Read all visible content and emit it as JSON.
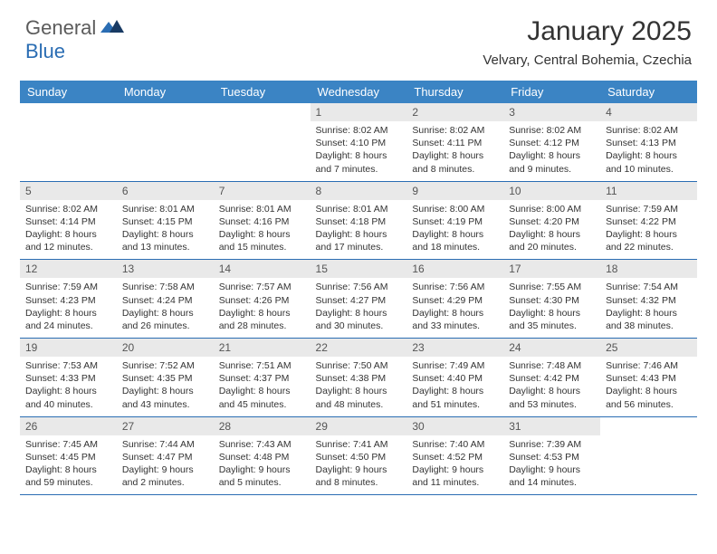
{
  "brand": {
    "part1": "General",
    "part2": "Blue"
  },
  "title": "January 2025",
  "subtitle": "Velvary, Central Bohemia, Czechia",
  "colors": {
    "header_bg": "#3b84c4",
    "header_text": "#ffffff",
    "daynum_bg": "#e9e9e9",
    "row_border": "#2a6db3",
    "brand_gray": "#5b5b5b",
    "brand_blue": "#2a6db3"
  },
  "day_labels": [
    "Sunday",
    "Monday",
    "Tuesday",
    "Wednesday",
    "Thursday",
    "Friday",
    "Saturday"
  ],
  "weeks": [
    [
      {
        "n": "",
        "sr": "",
        "ss": "",
        "dl": ""
      },
      {
        "n": "",
        "sr": "",
        "ss": "",
        "dl": ""
      },
      {
        "n": "",
        "sr": "",
        "ss": "",
        "dl": ""
      },
      {
        "n": "1",
        "sr": "Sunrise: 8:02 AM",
        "ss": "Sunset: 4:10 PM",
        "dl": "Daylight: 8 hours and 7 minutes."
      },
      {
        "n": "2",
        "sr": "Sunrise: 8:02 AM",
        "ss": "Sunset: 4:11 PM",
        "dl": "Daylight: 8 hours and 8 minutes."
      },
      {
        "n": "3",
        "sr": "Sunrise: 8:02 AM",
        "ss": "Sunset: 4:12 PM",
        "dl": "Daylight: 8 hours and 9 minutes."
      },
      {
        "n": "4",
        "sr": "Sunrise: 8:02 AM",
        "ss": "Sunset: 4:13 PM",
        "dl": "Daylight: 8 hours and 10 minutes."
      }
    ],
    [
      {
        "n": "5",
        "sr": "Sunrise: 8:02 AM",
        "ss": "Sunset: 4:14 PM",
        "dl": "Daylight: 8 hours and 12 minutes."
      },
      {
        "n": "6",
        "sr": "Sunrise: 8:01 AM",
        "ss": "Sunset: 4:15 PM",
        "dl": "Daylight: 8 hours and 13 minutes."
      },
      {
        "n": "7",
        "sr": "Sunrise: 8:01 AM",
        "ss": "Sunset: 4:16 PM",
        "dl": "Daylight: 8 hours and 15 minutes."
      },
      {
        "n": "8",
        "sr": "Sunrise: 8:01 AM",
        "ss": "Sunset: 4:18 PM",
        "dl": "Daylight: 8 hours and 17 minutes."
      },
      {
        "n": "9",
        "sr": "Sunrise: 8:00 AM",
        "ss": "Sunset: 4:19 PM",
        "dl": "Daylight: 8 hours and 18 minutes."
      },
      {
        "n": "10",
        "sr": "Sunrise: 8:00 AM",
        "ss": "Sunset: 4:20 PM",
        "dl": "Daylight: 8 hours and 20 minutes."
      },
      {
        "n": "11",
        "sr": "Sunrise: 7:59 AM",
        "ss": "Sunset: 4:22 PM",
        "dl": "Daylight: 8 hours and 22 minutes."
      }
    ],
    [
      {
        "n": "12",
        "sr": "Sunrise: 7:59 AM",
        "ss": "Sunset: 4:23 PM",
        "dl": "Daylight: 8 hours and 24 minutes."
      },
      {
        "n": "13",
        "sr": "Sunrise: 7:58 AM",
        "ss": "Sunset: 4:24 PM",
        "dl": "Daylight: 8 hours and 26 minutes."
      },
      {
        "n": "14",
        "sr": "Sunrise: 7:57 AM",
        "ss": "Sunset: 4:26 PM",
        "dl": "Daylight: 8 hours and 28 minutes."
      },
      {
        "n": "15",
        "sr": "Sunrise: 7:56 AM",
        "ss": "Sunset: 4:27 PM",
        "dl": "Daylight: 8 hours and 30 minutes."
      },
      {
        "n": "16",
        "sr": "Sunrise: 7:56 AM",
        "ss": "Sunset: 4:29 PM",
        "dl": "Daylight: 8 hours and 33 minutes."
      },
      {
        "n": "17",
        "sr": "Sunrise: 7:55 AM",
        "ss": "Sunset: 4:30 PM",
        "dl": "Daylight: 8 hours and 35 minutes."
      },
      {
        "n": "18",
        "sr": "Sunrise: 7:54 AM",
        "ss": "Sunset: 4:32 PM",
        "dl": "Daylight: 8 hours and 38 minutes."
      }
    ],
    [
      {
        "n": "19",
        "sr": "Sunrise: 7:53 AM",
        "ss": "Sunset: 4:33 PM",
        "dl": "Daylight: 8 hours and 40 minutes."
      },
      {
        "n": "20",
        "sr": "Sunrise: 7:52 AM",
        "ss": "Sunset: 4:35 PM",
        "dl": "Daylight: 8 hours and 43 minutes."
      },
      {
        "n": "21",
        "sr": "Sunrise: 7:51 AM",
        "ss": "Sunset: 4:37 PM",
        "dl": "Daylight: 8 hours and 45 minutes."
      },
      {
        "n": "22",
        "sr": "Sunrise: 7:50 AM",
        "ss": "Sunset: 4:38 PM",
        "dl": "Daylight: 8 hours and 48 minutes."
      },
      {
        "n": "23",
        "sr": "Sunrise: 7:49 AM",
        "ss": "Sunset: 4:40 PM",
        "dl": "Daylight: 8 hours and 51 minutes."
      },
      {
        "n": "24",
        "sr": "Sunrise: 7:48 AM",
        "ss": "Sunset: 4:42 PM",
        "dl": "Daylight: 8 hours and 53 minutes."
      },
      {
        "n": "25",
        "sr": "Sunrise: 7:46 AM",
        "ss": "Sunset: 4:43 PM",
        "dl": "Daylight: 8 hours and 56 minutes."
      }
    ],
    [
      {
        "n": "26",
        "sr": "Sunrise: 7:45 AM",
        "ss": "Sunset: 4:45 PM",
        "dl": "Daylight: 8 hours and 59 minutes."
      },
      {
        "n": "27",
        "sr": "Sunrise: 7:44 AM",
        "ss": "Sunset: 4:47 PM",
        "dl": "Daylight: 9 hours and 2 minutes."
      },
      {
        "n": "28",
        "sr": "Sunrise: 7:43 AM",
        "ss": "Sunset: 4:48 PM",
        "dl": "Daylight: 9 hours and 5 minutes."
      },
      {
        "n": "29",
        "sr": "Sunrise: 7:41 AM",
        "ss": "Sunset: 4:50 PM",
        "dl": "Daylight: 9 hours and 8 minutes."
      },
      {
        "n": "30",
        "sr": "Sunrise: 7:40 AM",
        "ss": "Sunset: 4:52 PM",
        "dl": "Daylight: 9 hours and 11 minutes."
      },
      {
        "n": "31",
        "sr": "Sunrise: 7:39 AM",
        "ss": "Sunset: 4:53 PM",
        "dl": "Daylight: 9 hours and 14 minutes."
      },
      {
        "n": "",
        "sr": "",
        "ss": "",
        "dl": ""
      }
    ]
  ]
}
